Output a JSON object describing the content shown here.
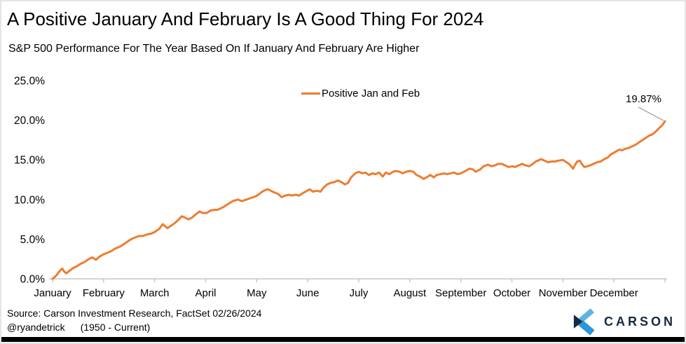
{
  "chart_data": {
    "type": "line",
    "title": "A Positive January And February Is A Good Thing For 2024",
    "subtitle": "S&P 500 Performance For The Year Based On If January And February Are Higher",
    "x_tick_labels": [
      "January",
      "February",
      "March",
      "April",
      "May",
      "June",
      "July",
      "August",
      "September",
      "October",
      "November",
      "December"
    ],
    "y_tick_labels": [
      "0.0%",
      "5.0%",
      "10.0%",
      "15.0%",
      "20.0%",
      "25.0%"
    ],
    "ylim": [
      0,
      25
    ],
    "y_step": 5,
    "x_unit_note": "x = month position within the year, 0 = start of January, 12 = end of December",
    "grid": false,
    "legend_position": "top-center",
    "end_label": "19.87%",
    "end_value": 19.87,
    "series": [
      {
        "name": "Positive Jan and Feb",
        "points": [
          [
            0.0,
            0.0
          ],
          [
            0.07,
            0.4
          ],
          [
            0.14,
            1.0
          ],
          [
            0.19,
            1.3
          ],
          [
            0.23,
            0.9
          ],
          [
            0.27,
            0.7
          ],
          [
            0.33,
            1.0
          ],
          [
            0.41,
            1.4
          ],
          [
            0.48,
            1.6
          ],
          [
            0.55,
            1.9
          ],
          [
            0.62,
            2.1
          ],
          [
            0.71,
            2.5
          ],
          [
            0.78,
            2.7
          ],
          [
            0.85,
            2.4
          ],
          [
            0.92,
            2.8
          ],
          [
            1.0,
            3.1
          ],
          [
            1.08,
            3.3
          ],
          [
            1.15,
            3.5
          ],
          [
            1.22,
            3.8
          ],
          [
            1.33,
            4.1
          ],
          [
            1.4,
            4.4
          ],
          [
            1.47,
            4.7
          ],
          [
            1.54,
            5.0
          ],
          [
            1.61,
            5.2
          ],
          [
            1.69,
            5.4
          ],
          [
            1.77,
            5.4
          ],
          [
            1.85,
            5.6
          ],
          [
            1.93,
            5.7
          ],
          [
            2.0,
            5.9
          ],
          [
            2.09,
            6.3
          ],
          [
            2.16,
            6.9
          ],
          [
            2.21,
            6.6
          ],
          [
            2.25,
            6.4
          ],
          [
            2.32,
            6.7
          ],
          [
            2.39,
            7.0
          ],
          [
            2.46,
            7.4
          ],
          [
            2.53,
            7.9
          ],
          [
            2.6,
            7.7
          ],
          [
            2.66,
            7.5
          ],
          [
            2.73,
            7.7
          ],
          [
            2.8,
            8.1
          ],
          [
            2.88,
            8.5
          ],
          [
            2.94,
            8.3
          ],
          [
            3.02,
            8.3
          ],
          [
            3.09,
            8.6
          ],
          [
            3.16,
            8.7
          ],
          [
            3.23,
            8.7
          ],
          [
            3.3,
            8.9
          ],
          [
            3.36,
            9.1
          ],
          [
            3.43,
            9.4
          ],
          [
            3.53,
            9.8
          ],
          [
            3.63,
            10.0
          ],
          [
            3.71,
            9.8
          ],
          [
            3.8,
            10.0
          ],
          [
            3.89,
            10.2
          ],
          [
            3.98,
            10.4
          ],
          [
            4.05,
            10.7
          ],
          [
            4.11,
            11.0
          ],
          [
            4.17,
            11.2
          ],
          [
            4.22,
            11.3
          ],
          [
            4.31,
            11.0
          ],
          [
            4.42,
            10.7
          ],
          [
            4.49,
            10.3
          ],
          [
            4.56,
            10.5
          ],
          [
            4.63,
            10.6
          ],
          [
            4.7,
            10.5
          ],
          [
            4.76,
            10.6
          ],
          [
            4.83,
            10.5
          ],
          [
            4.9,
            10.8
          ],
          [
            4.96,
            11.0
          ],
          [
            5.04,
            11.3
          ],
          [
            5.1,
            11.0
          ],
          [
            5.18,
            11.1
          ],
          [
            5.25,
            11.0
          ],
          [
            5.31,
            11.5
          ],
          [
            5.38,
            11.9
          ],
          [
            5.45,
            12.1
          ],
          [
            5.52,
            12.2
          ],
          [
            5.59,
            12.4
          ],
          [
            5.66,
            12.2
          ],
          [
            5.73,
            11.9
          ],
          [
            5.79,
            12.1
          ],
          [
            5.85,
            12.8
          ],
          [
            5.93,
            13.3
          ],
          [
            6.0,
            13.5
          ],
          [
            6.07,
            13.3
          ],
          [
            6.13,
            13.4
          ],
          [
            6.2,
            13.1
          ],
          [
            6.27,
            13.3
          ],
          [
            6.33,
            13.2
          ],
          [
            6.4,
            13.4
          ],
          [
            6.47,
            12.9
          ],
          [
            6.53,
            13.4
          ],
          [
            6.6,
            13.2
          ],
          [
            6.67,
            13.5
          ],
          [
            6.73,
            13.6
          ],
          [
            6.8,
            13.5
          ],
          [
            6.86,
            13.3
          ],
          [
            6.93,
            13.5
          ],
          [
            7.0,
            13.6
          ],
          [
            7.07,
            13.5
          ],
          [
            7.13,
            13.1
          ],
          [
            7.2,
            12.9
          ],
          [
            7.27,
            12.6
          ],
          [
            7.33,
            12.8
          ],
          [
            7.4,
            13.1
          ],
          [
            7.47,
            12.8
          ],
          [
            7.53,
            13.1
          ],
          [
            7.6,
            13.2
          ],
          [
            7.67,
            13.3
          ],
          [
            7.73,
            13.2
          ],
          [
            7.8,
            13.3
          ],
          [
            7.87,
            13.4
          ],
          [
            7.93,
            13.2
          ],
          [
            8.0,
            13.3
          ],
          [
            8.09,
            13.6
          ],
          [
            8.17,
            13.9
          ],
          [
            8.24,
            13.8
          ],
          [
            8.29,
            13.5
          ],
          [
            8.38,
            13.8
          ],
          [
            8.45,
            14.2
          ],
          [
            8.53,
            14.4
          ],
          [
            8.6,
            14.2
          ],
          [
            8.67,
            14.3
          ],
          [
            8.73,
            14.5
          ],
          [
            8.8,
            14.5
          ],
          [
            8.87,
            14.3
          ],
          [
            8.93,
            14.1
          ],
          [
            9.01,
            14.2
          ],
          [
            9.06,
            14.1
          ],
          [
            9.13,
            14.3
          ],
          [
            9.2,
            14.5
          ],
          [
            9.27,
            14.3
          ],
          [
            9.34,
            14.2
          ],
          [
            9.41,
            14.5
          ],
          [
            9.47,
            14.8
          ],
          [
            9.54,
            15.0
          ],
          [
            9.57,
            15.1
          ],
          [
            9.64,
            14.9
          ],
          [
            9.71,
            14.7
          ],
          [
            9.78,
            14.8
          ],
          [
            9.84,
            14.8
          ],
          [
            9.91,
            14.9
          ],
          [
            10.0,
            15.0
          ],
          [
            10.07,
            14.7
          ],
          [
            10.12,
            14.5
          ],
          [
            10.16,
            14.2
          ],
          [
            10.2,
            13.9
          ],
          [
            10.24,
            14.4
          ],
          [
            10.28,
            14.8
          ],
          [
            10.33,
            14.9
          ],
          [
            10.37,
            14.5
          ],
          [
            10.42,
            14.1
          ],
          [
            10.48,
            14.2
          ],
          [
            10.53,
            14.3
          ],
          [
            10.6,
            14.5
          ],
          [
            10.67,
            14.7
          ],
          [
            10.74,
            14.8
          ],
          [
            10.81,
            15.1
          ],
          [
            10.88,
            15.3
          ],
          [
            10.94,
            15.7
          ],
          [
            11.0,
            15.9
          ],
          [
            11.05,
            16.1
          ],
          [
            11.11,
            16.3
          ],
          [
            11.16,
            16.2
          ],
          [
            11.22,
            16.4
          ],
          [
            11.29,
            16.5
          ],
          [
            11.35,
            16.7
          ],
          [
            11.42,
            16.9
          ],
          [
            11.49,
            17.2
          ],
          [
            11.56,
            17.5
          ],
          [
            11.63,
            17.8
          ],
          [
            11.7,
            18.1
          ],
          [
            11.75,
            18.2
          ],
          [
            11.79,
            18.4
          ],
          [
            11.84,
            18.7
          ],
          [
            11.9,
            19.1
          ],
          [
            11.95,
            19.4
          ],
          [
            12.0,
            19.87
          ]
        ]
      }
    ]
  },
  "footer": {
    "source_line": "Source: Carson Investment Research, FactSet 02/26/2024",
    "handle": "@ryandetrick",
    "range": "(1950 - Current)",
    "logo_text": "CARSON"
  },
  "colors": {
    "line": "#ED7D31",
    "axis": "#C6C6C6",
    "leader": "#A6A6A6",
    "text": "#000000",
    "navy": "#17293E",
    "logo_light": "#5EB3E4",
    "logo_mid": "#2B96D9",
    "bottom_bar": "#000000"
  }
}
